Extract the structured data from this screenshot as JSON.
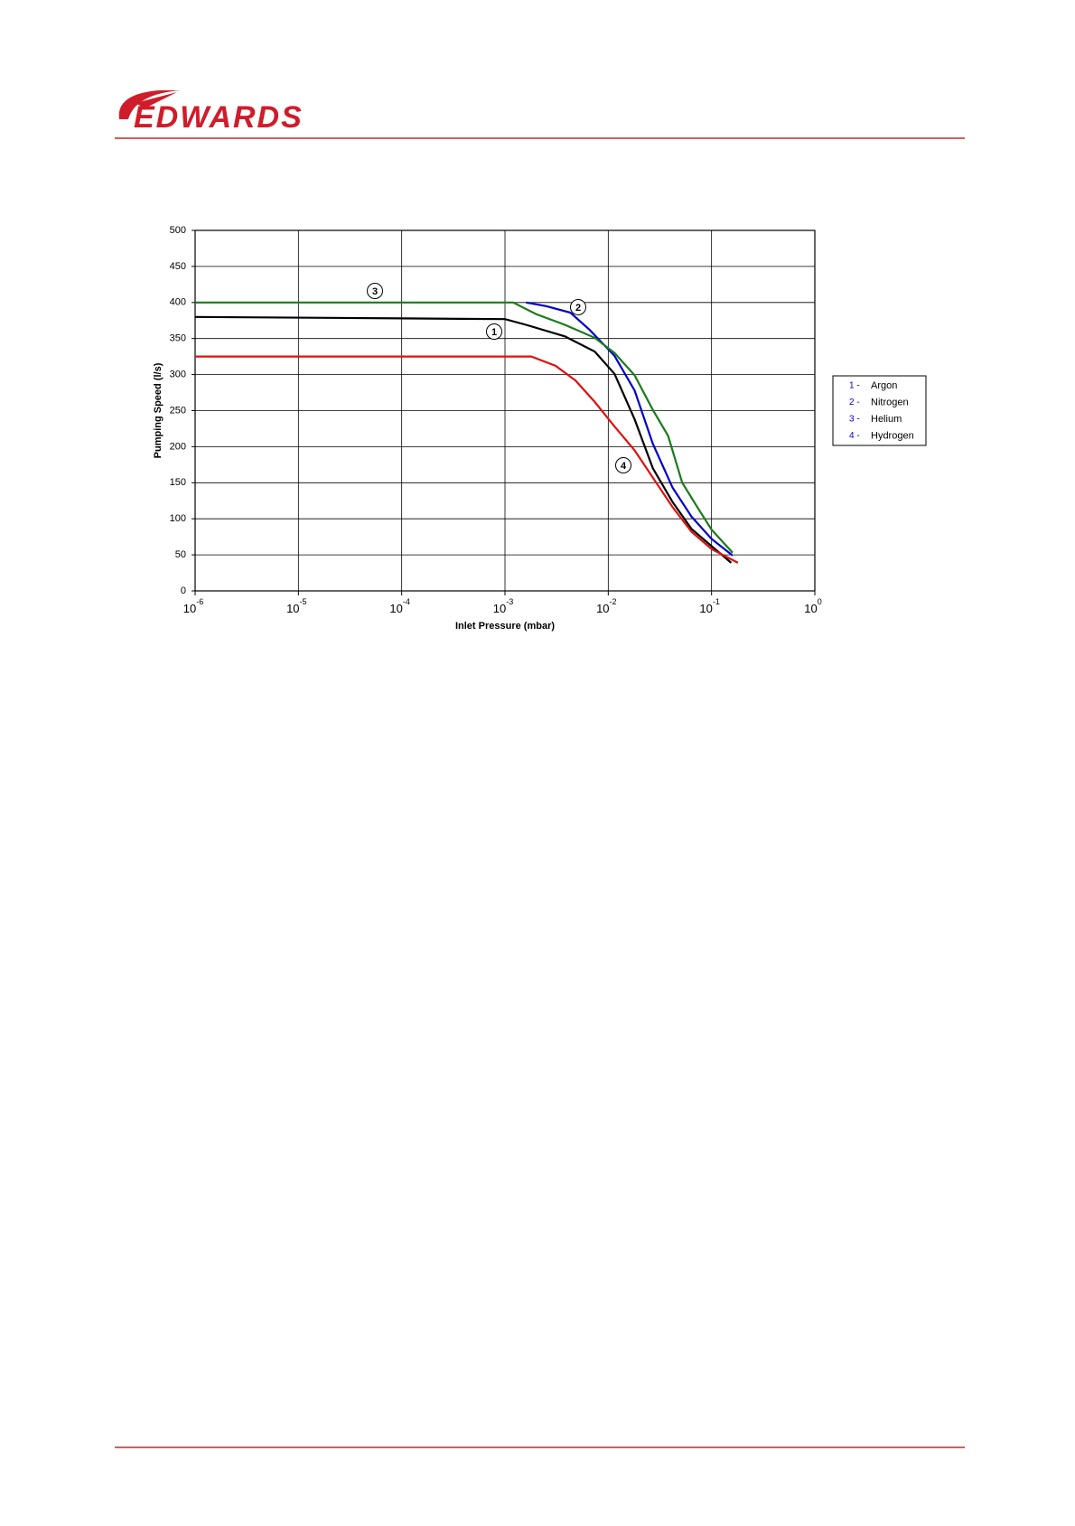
{
  "logo": "EDWARDS",
  "chart_data": {
    "type": "line",
    "xlabel": "Inlet Pressure (mbar)",
    "ylabel": "Pumping Speed (l/s)",
    "xscale": "log",
    "xlim": [
      1e-06,
      1
    ],
    "ylim": [
      0,
      500
    ],
    "xticks": [
      {
        "value": 1e-06,
        "label": "10",
        "exponent": "-6"
      },
      {
        "value": 1e-05,
        "label": "10",
        "exponent": "-5"
      },
      {
        "value": 0.0001,
        "label": "10",
        "exponent": "-4"
      },
      {
        "value": 0.001,
        "label": "10",
        "exponent": "-3"
      },
      {
        "value": 0.01,
        "label": "10",
        "exponent": "-2"
      },
      {
        "value": 0.1,
        "label": "10",
        "exponent": "-1"
      },
      {
        "value": 1,
        "label": "10",
        "exponent": "0"
      }
    ],
    "yticks": [
      0,
      50,
      100,
      150,
      200,
      250,
      300,
      350,
      400,
      450,
      500
    ],
    "grid": true,
    "legend_position": "right",
    "series": [
      {
        "name": "Argon",
        "key": "1 -",
        "color": "#000000",
        "x": [
          1e-06,
          0.0001,
          0.001,
          0.0016,
          0.0038,
          0.0074,
          0.0115,
          0.018,
          0.027,
          0.042,
          0.064,
          0.1,
          0.155
        ],
        "values": [
          380,
          378,
          377,
          369,
          353,
          332,
          301,
          238,
          170,
          123,
          86,
          62,
          39
        ]
      },
      {
        "name": "Nitrogen",
        "key": "2 -",
        "color": "#0000cc",
        "x": [
          0.0016,
          0.0025,
          0.0043,
          0.0066,
          0.0115,
          0.018,
          0.027,
          0.042,
          0.064,
          0.1,
          0.16
        ],
        "values": [
          400,
          395,
          386,
          362,
          326,
          278,
          204,
          143,
          103,
          72,
          49
        ]
      },
      {
        "name": "Helium",
        "key": "3 -",
        "color": "#1a7a1a",
        "x": [
          1e-06,
          0.0012,
          0.002,
          0.0038,
          0.0074,
          0.0115,
          0.018,
          0.027,
          0.038,
          0.052,
          0.073,
          0.1,
          0.16
        ],
        "values": [
          400,
          400,
          384,
          369,
          351,
          330,
          299,
          251,
          215,
          150,
          116,
          85,
          53
        ]
      },
      {
        "name": "Hydrogen",
        "key": "4 -",
        "color": "#e01010",
        "x": [
          1e-06,
          0.0018,
          0.0031,
          0.0048,
          0.0074,
          0.0115,
          0.018,
          0.027,
          0.042,
          0.064,
          0.1,
          0.18
        ],
        "values": [
          325,
          325,
          312,
          292,
          262,
          228,
          195,
          157,
          116,
          82,
          58,
          39
        ]
      }
    ],
    "annotations": [
      "3",
      "2",
      "1",
      "4"
    ]
  }
}
